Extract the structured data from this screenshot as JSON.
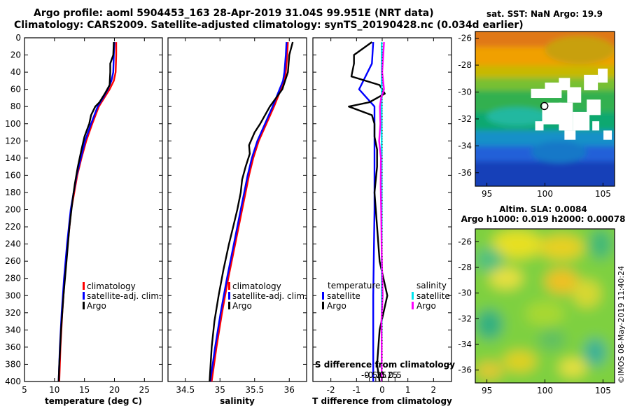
{
  "header": {
    "line1": "Argo profile: aoml 5904453_163 28-Apr-2019 31.04S 99.951E (NRT data)",
    "line2": "Climatology: CARS2009. Satellite-adjusted climatology: synTS_20190428.nc (0.034d earlier)"
  },
  "colors": {
    "climatology": "#ff0000",
    "satellite": "#0000ff",
    "argo": "#000000",
    "sat_salinity": "#00e5ee",
    "argo_salinity": "#ff00ff"
  },
  "chart_data": [
    {
      "id": "temperature",
      "type": "line",
      "xlabel": "temperature (deg C)",
      "ylabel": "",
      "xlim": [
        5,
        28
      ],
      "ylim": [
        400,
        0
      ],
      "xticks": [
        "5",
        "10",
        "15",
        "20",
        "25"
      ],
      "xtick_values": [
        5,
        10,
        15,
        20,
        25
      ],
      "yticks": [
        "0",
        "20",
        "40",
        "60",
        "80",
        "100",
        "120",
        "140",
        "160",
        "180",
        "200",
        "220",
        "240",
        "260",
        "280",
        "300",
        "320",
        "340",
        "360",
        "380",
        "400"
      ],
      "ytick_values": [
        0,
        20,
        40,
        60,
        80,
        100,
        120,
        140,
        160,
        180,
        200,
        220,
        240,
        260,
        280,
        300,
        320,
        340,
        360,
        380,
        400
      ],
      "legend": [
        "climatology",
        "satellite-adj. clim.",
        "Argo"
      ],
      "series": [
        {
          "name": "climatology",
          "color": "#ff0000",
          "depth": [
            5,
            20,
            40,
            50,
            60,
            70,
            80,
            100,
            120,
            140,
            160,
            180,
            200,
            240,
            280,
            320,
            360,
            400
          ],
          "values": [
            20.3,
            20.3,
            20.2,
            19.9,
            19.2,
            18.3,
            17.4,
            16.3,
            15.3,
            14.5,
            13.8,
            13.3,
            12.8,
            12.2,
            11.7,
            11.3,
            11.0,
            10.8
          ]
        },
        {
          "name": "satellite-adj. clim.",
          "color": "#0000ff",
          "depth": [
            5,
            20,
            40,
            50,
            60,
            70,
            80,
            100,
            120,
            140,
            160,
            180,
            200,
            240,
            280,
            320,
            360,
            400
          ],
          "values": [
            20.0,
            19.9,
            19.8,
            19.5,
            18.9,
            18.1,
            17.2,
            16.1,
            15.1,
            14.4,
            13.7,
            13.2,
            12.7,
            12.1,
            11.6,
            11.2,
            10.9,
            10.7
          ]
        },
        {
          "name": "Argo",
          "color": "#000000",
          "depth": [
            5,
            20,
            30,
            40,
            55,
            65,
            75,
            80,
            90,
            100,
            115,
            130,
            150,
            170,
            190,
            220,
            260,
            300,
            340,
            380,
            400
          ],
          "values": [
            19.9,
            19.8,
            19.3,
            19.3,
            19.2,
            18.4,
            17.5,
            16.8,
            16.1,
            15.8,
            15.0,
            14.5,
            13.9,
            13.4,
            13.0,
            12.5,
            12.0,
            11.5,
            11.1,
            10.8,
            10.7
          ]
        }
      ]
    },
    {
      "id": "salinity",
      "type": "line",
      "xlabel": "salinity",
      "ylabel": "",
      "xlim": [
        34.25,
        36.25
      ],
      "ylim": [
        400,
        0
      ],
      "xticks": [
        "34.5",
        "35",
        "35.5",
        "36"
      ],
      "xtick_values": [
        34.5,
        35.0,
        35.5,
        36.0
      ],
      "legend": [
        "climatology",
        "satellite-adj. clim.",
        "Argo"
      ],
      "series": [
        {
          "name": "climatology",
          "color": "#ff0000",
          "depth": [
            5,
            20,
            40,
            50,
            60,
            80,
            100,
            120,
            140,
            160,
            180,
            200,
            240,
            280,
            320,
            360,
            400
          ],
          "values": [
            35.98,
            35.97,
            35.95,
            35.93,
            35.88,
            35.78,
            35.67,
            35.56,
            35.48,
            35.42,
            35.37,
            35.32,
            35.22,
            35.12,
            35.03,
            34.95,
            34.88
          ]
        },
        {
          "name": "satellite-adj. clim.",
          "color": "#0000ff",
          "depth": [
            5,
            20,
            40,
            50,
            60,
            80,
            100,
            120,
            140,
            160,
            180,
            200,
            240,
            280,
            320,
            360,
            400
          ],
          "values": [
            35.96,
            35.95,
            35.93,
            35.91,
            35.86,
            35.76,
            35.65,
            35.54,
            35.46,
            35.4,
            35.35,
            35.3,
            35.2,
            35.1,
            35.01,
            34.93,
            34.86
          ]
        },
        {
          "name": "Argo",
          "color": "#000000",
          "depth": [
            5,
            20,
            40,
            60,
            80,
            100,
            110,
            125,
            135,
            150,
            165,
            180,
            200,
            220,
            240,
            270,
            300,
            330,
            360,
            400
          ],
          "values": [
            36.05,
            36.0,
            35.98,
            35.9,
            35.72,
            35.58,
            35.5,
            35.42,
            35.43,
            35.37,
            35.32,
            35.3,
            35.25,
            35.19,
            35.13,
            35.05,
            34.98,
            34.92,
            34.88,
            34.85
          ]
        }
      ]
    },
    {
      "id": "difference",
      "type": "line",
      "xlabel": "T difference from climatology",
      "top_label": "S difference from climatology",
      "xlim": [
        -2.7,
        2.7
      ],
      "ylim": [
        400,
        0
      ],
      "xticks": [
        "-2",
        "-1",
        "0",
        "1",
        "2"
      ],
      "xtick_values": [
        -2,
        -1,
        0,
        1,
        2
      ],
      "sticks": [
        "-0.5",
        "-0.25",
        "0",
        "0.25",
        "0.5"
      ],
      "stick_values": [
        -0.5,
        -0.25,
        0,
        0.25,
        0.5
      ],
      "legend_headers": [
        "temperature",
        "salinity"
      ],
      "legend_temperature": [
        "satellite",
        "Argo"
      ],
      "legend_salinity": [
        "satellite",
        "Argo"
      ],
      "series": [
        {
          "name": "T satellite",
          "color": "#0000ff",
          "depth": [
            5,
            30,
            60,
            80,
            120,
            200,
            300,
            400
          ],
          "values": [
            -0.35,
            -0.4,
            -0.9,
            -0.3,
            -0.3,
            -0.3,
            -0.35,
            -0.35
          ]
        },
        {
          "name": "T Argo",
          "color": "#000000",
          "depth": [
            5,
            20,
            30,
            45,
            55,
            65,
            75,
            80,
            90,
            100,
            115,
            130,
            150,
            180,
            220,
            260,
            300,
            340,
            380,
            400
          ],
          "values": [
            -0.4,
            -1.1,
            -1.1,
            -1.2,
            -0.1,
            0.1,
            -0.5,
            -1.3,
            -0.4,
            -0.3,
            -0.3,
            -0.2,
            -0.2,
            -0.3,
            -0.2,
            -0.1,
            0.2,
            -0.1,
            -0.2,
            -0.1
          ]
        },
        {
          "name": "S satellite",
          "color": "#00e5ee",
          "depth": [
            5,
            20,
            40,
            60,
            80,
            100,
            140,
            200,
            260,
            300,
            340,
            400
          ],
          "values": [
            -0.02,
            -0.02,
            -0.02,
            -0.02,
            -0.02,
            -0.02,
            -0.02,
            -0.02,
            -0.02,
            -0.02,
            -0.02,
            -0.02
          ]
        },
        {
          "name": "S Argo",
          "color": "#ff00ff",
          "depth": [
            5,
            20,
            40,
            60,
            70,
            80,
            100,
            120,
            140,
            170,
            200,
            250,
            290,
            300,
            330,
            360,
            400
          ],
          "values": [
            0.07,
            0.04,
            0.0,
            0.07,
            -0.04,
            -0.09,
            -0.07,
            -0.12,
            -0.05,
            -0.06,
            -0.04,
            -0.02,
            0.01,
            0.02,
            -0.03,
            -0.02,
            -0.02
          ]
        }
      ]
    }
  ],
  "sst_map": {
    "title": "sat. SST: NaN Argo: 19.9",
    "xticks": [
      "95",
      "100",
      "105"
    ],
    "xtick_values": [
      95,
      100,
      105
    ],
    "yticks": [
      "-26",
      "-28",
      "-30",
      "-32",
      "-34",
      "-36"
    ],
    "ytick_values": [
      -26,
      -28,
      -30,
      -32,
      -34,
      -36
    ],
    "lon_range": [
      94,
      106
    ],
    "lat_range": [
      -37,
      -25.5
    ],
    "float_lon": 99.951,
    "float_lat": -31.04
  },
  "sla_map": {
    "title1": "Altim. SLA: 0.0084",
    "title2": "Argo h1000: 0.019 h2000: 0.00078",
    "xticks": [
      "95",
      "100",
      "105"
    ],
    "xtick_values": [
      95,
      100,
      105
    ],
    "yticks": [
      "-26",
      "-28",
      "-30",
      "-32",
      "-34",
      "-36"
    ],
    "ytick_values": [
      -26,
      -28,
      -30,
      -32,
      -34,
      -36
    ],
    "lon_range": [
      94,
      106
    ],
    "lat_range": [
      -37,
      -25
    ]
  },
  "credit": "©IMOS 08-May-2019 11:40:24"
}
